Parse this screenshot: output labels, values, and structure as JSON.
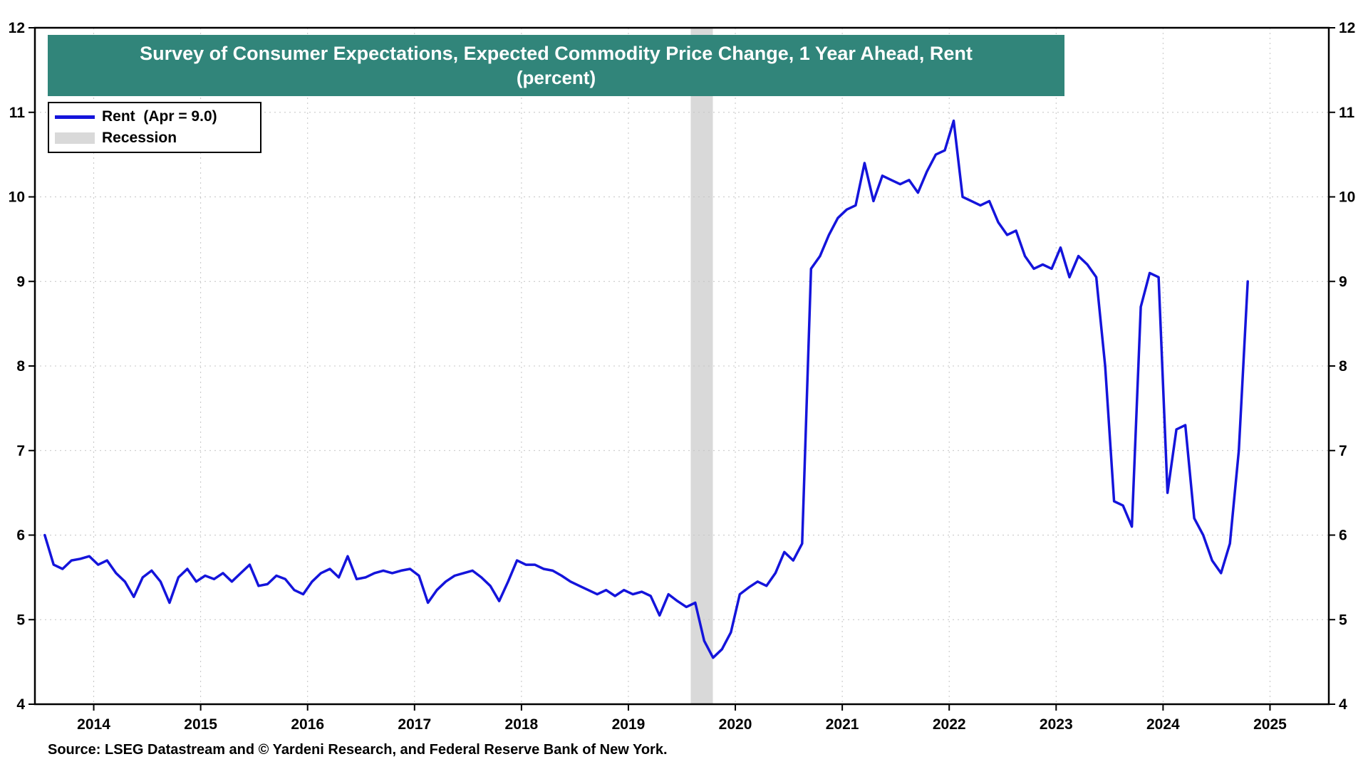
{
  "title": {
    "line1": "Survey of Consumer Expectations, Expected Commodity Price Change, 1 Year Ahead, Rent",
    "line2": "(percent)"
  },
  "legend": {
    "rent_label": "Rent  (Apr = 9.0)",
    "recession_label": "Recession"
  },
  "source": "Source: LSEG Datastream and © Yardeni Research, and Federal Reserve Bank of New York.",
  "colors": {
    "line": "#1414DB",
    "banner": "#31857A",
    "recession": "#D9D9D9",
    "grid": "#C4C4C4",
    "frame": "#000000",
    "label": "#000000"
  },
  "chart_data": {
    "type": "line",
    "title": "Survey of Consumer Expectations, Expected Commodity Price Change, 1 Year Ahead, Rent (percent)",
    "xlabel": "",
    "ylabel": "percent",
    "ylim": [
      4,
      12
    ],
    "yticks": [
      4,
      5,
      6,
      7,
      8,
      9,
      10,
      11,
      12
    ],
    "xticks": [
      2014,
      2015,
      2016,
      2017,
      2018,
      2019,
      2020,
      2021,
      2022,
      2023,
      2024,
      2025
    ],
    "x_range": [
      2013.95,
      2026.05
    ],
    "grid": true,
    "legend_position": "top-left",
    "recession_bands": [
      [
        2020.083,
        2020.29
      ]
    ],
    "last_point_label": "Apr = 9.0",
    "series": [
      {
        "name": "Rent",
        "frequency": "monthly",
        "x_start": 2014.0,
        "values": [
          6.0,
          5.65,
          5.6,
          5.7,
          5.72,
          5.75,
          5.65,
          5.7,
          5.55,
          5.45,
          5.27,
          5.5,
          5.58,
          5.45,
          5.2,
          5.5,
          5.6,
          5.45,
          5.52,
          5.48,
          5.55,
          5.45,
          5.55,
          5.65,
          5.4,
          5.42,
          5.52,
          5.48,
          5.35,
          5.3,
          5.45,
          5.55,
          5.6,
          5.5,
          5.75,
          5.48,
          5.5,
          5.55,
          5.58,
          5.55,
          5.58,
          5.6,
          5.52,
          5.2,
          5.35,
          5.45,
          5.52,
          5.55,
          5.58,
          5.5,
          5.4,
          5.22,
          5.45,
          5.7,
          5.65,
          5.65,
          5.6,
          5.58,
          5.52,
          5.45,
          5.4,
          5.35,
          5.3,
          5.35,
          5.28,
          5.35,
          5.3,
          5.33,
          5.28,
          5.05,
          5.3,
          5.22,
          5.15,
          5.2,
          4.75,
          4.55,
          4.65,
          4.85,
          5.3,
          5.38,
          5.45,
          5.4,
          5.55,
          5.8,
          5.7,
          5.9,
          9.15,
          9.3,
          9.55,
          9.75,
          9.85,
          9.9,
          10.4,
          9.95,
          10.25,
          10.2,
          10.15,
          10.2,
          10.05,
          10.3,
          10.5,
          10.55,
          10.9,
          10.0,
          9.95,
          9.9,
          9.95,
          9.7,
          9.55,
          9.6,
          9.3,
          9.15,
          9.2,
          9.15,
          9.4,
          9.05,
          9.3,
          9.2,
          9.05,
          8.0,
          6.4,
          6.35,
          6.1,
          8.7,
          9.1,
          9.05,
          6.5,
          7.25,
          7.3,
          6.2,
          6.0,
          5.7,
          5.55,
          5.9,
          7.0,
          9.0
        ]
      }
    ]
  }
}
